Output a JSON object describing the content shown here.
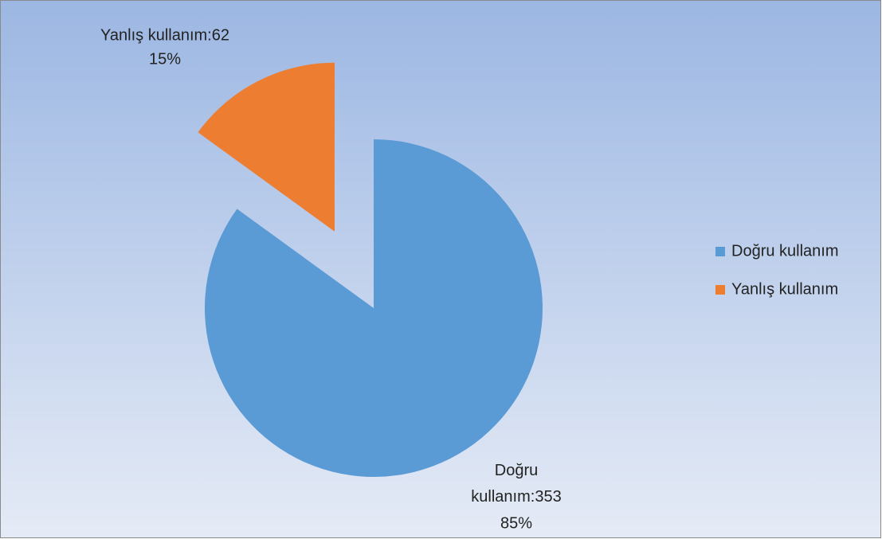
{
  "chart_data": {
    "type": "pie",
    "categories": [
      "Doğru kullanım",
      "Yanlış kullanım"
    ],
    "values": [
      85,
      15
    ],
    "value_labels": [
      "85%",
      "15%"
    ],
    "counts": [
      353,
      62
    ],
    "count_labels": [
      "Doğru kullanım:353",
      "Yanlış kullanım:62"
    ],
    "colors": [
      "#5b9bd5",
      "#ed7d31"
    ],
    "exploded": [
      false,
      true
    ],
    "legend": "right"
  }
}
